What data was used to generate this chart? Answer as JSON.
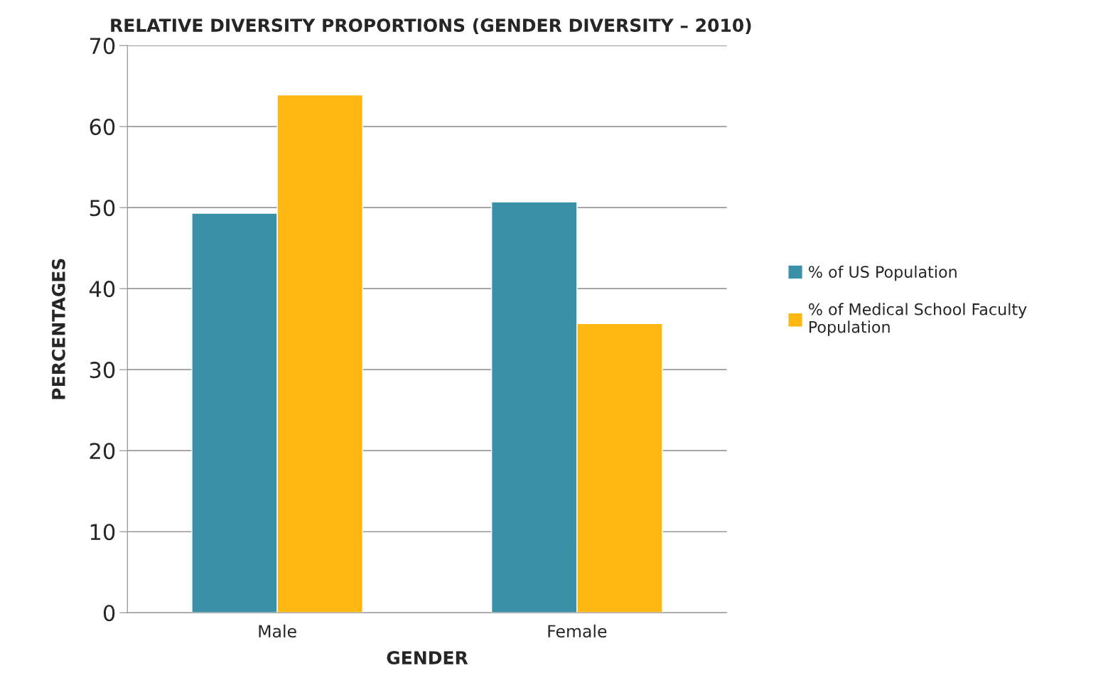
{
  "chart_data": {
    "type": "bar",
    "title": "RELATIVE DIVERSITY PROPORTIONS (GENDER DIVERSITY – 2010)",
    "xlabel": "GENDER",
    "ylabel": "PERCENTAGES",
    "categories": [
      "Male",
      "Female"
    ],
    "series": [
      {
        "name": "% of US Population",
        "color": "#3a91a7",
        "values": [
          49.3,
          50.7
        ]
      },
      {
        "name": "% of Medical School Faculty Population",
        "color": "#fdb710",
        "values": [
          63.9,
          35.7
        ]
      }
    ],
    "ylim": [
      0,
      70
    ],
    "yticks": [
      0,
      10,
      20,
      30,
      40,
      50,
      60,
      70
    ],
    "grid": "y",
    "legend": "right"
  }
}
